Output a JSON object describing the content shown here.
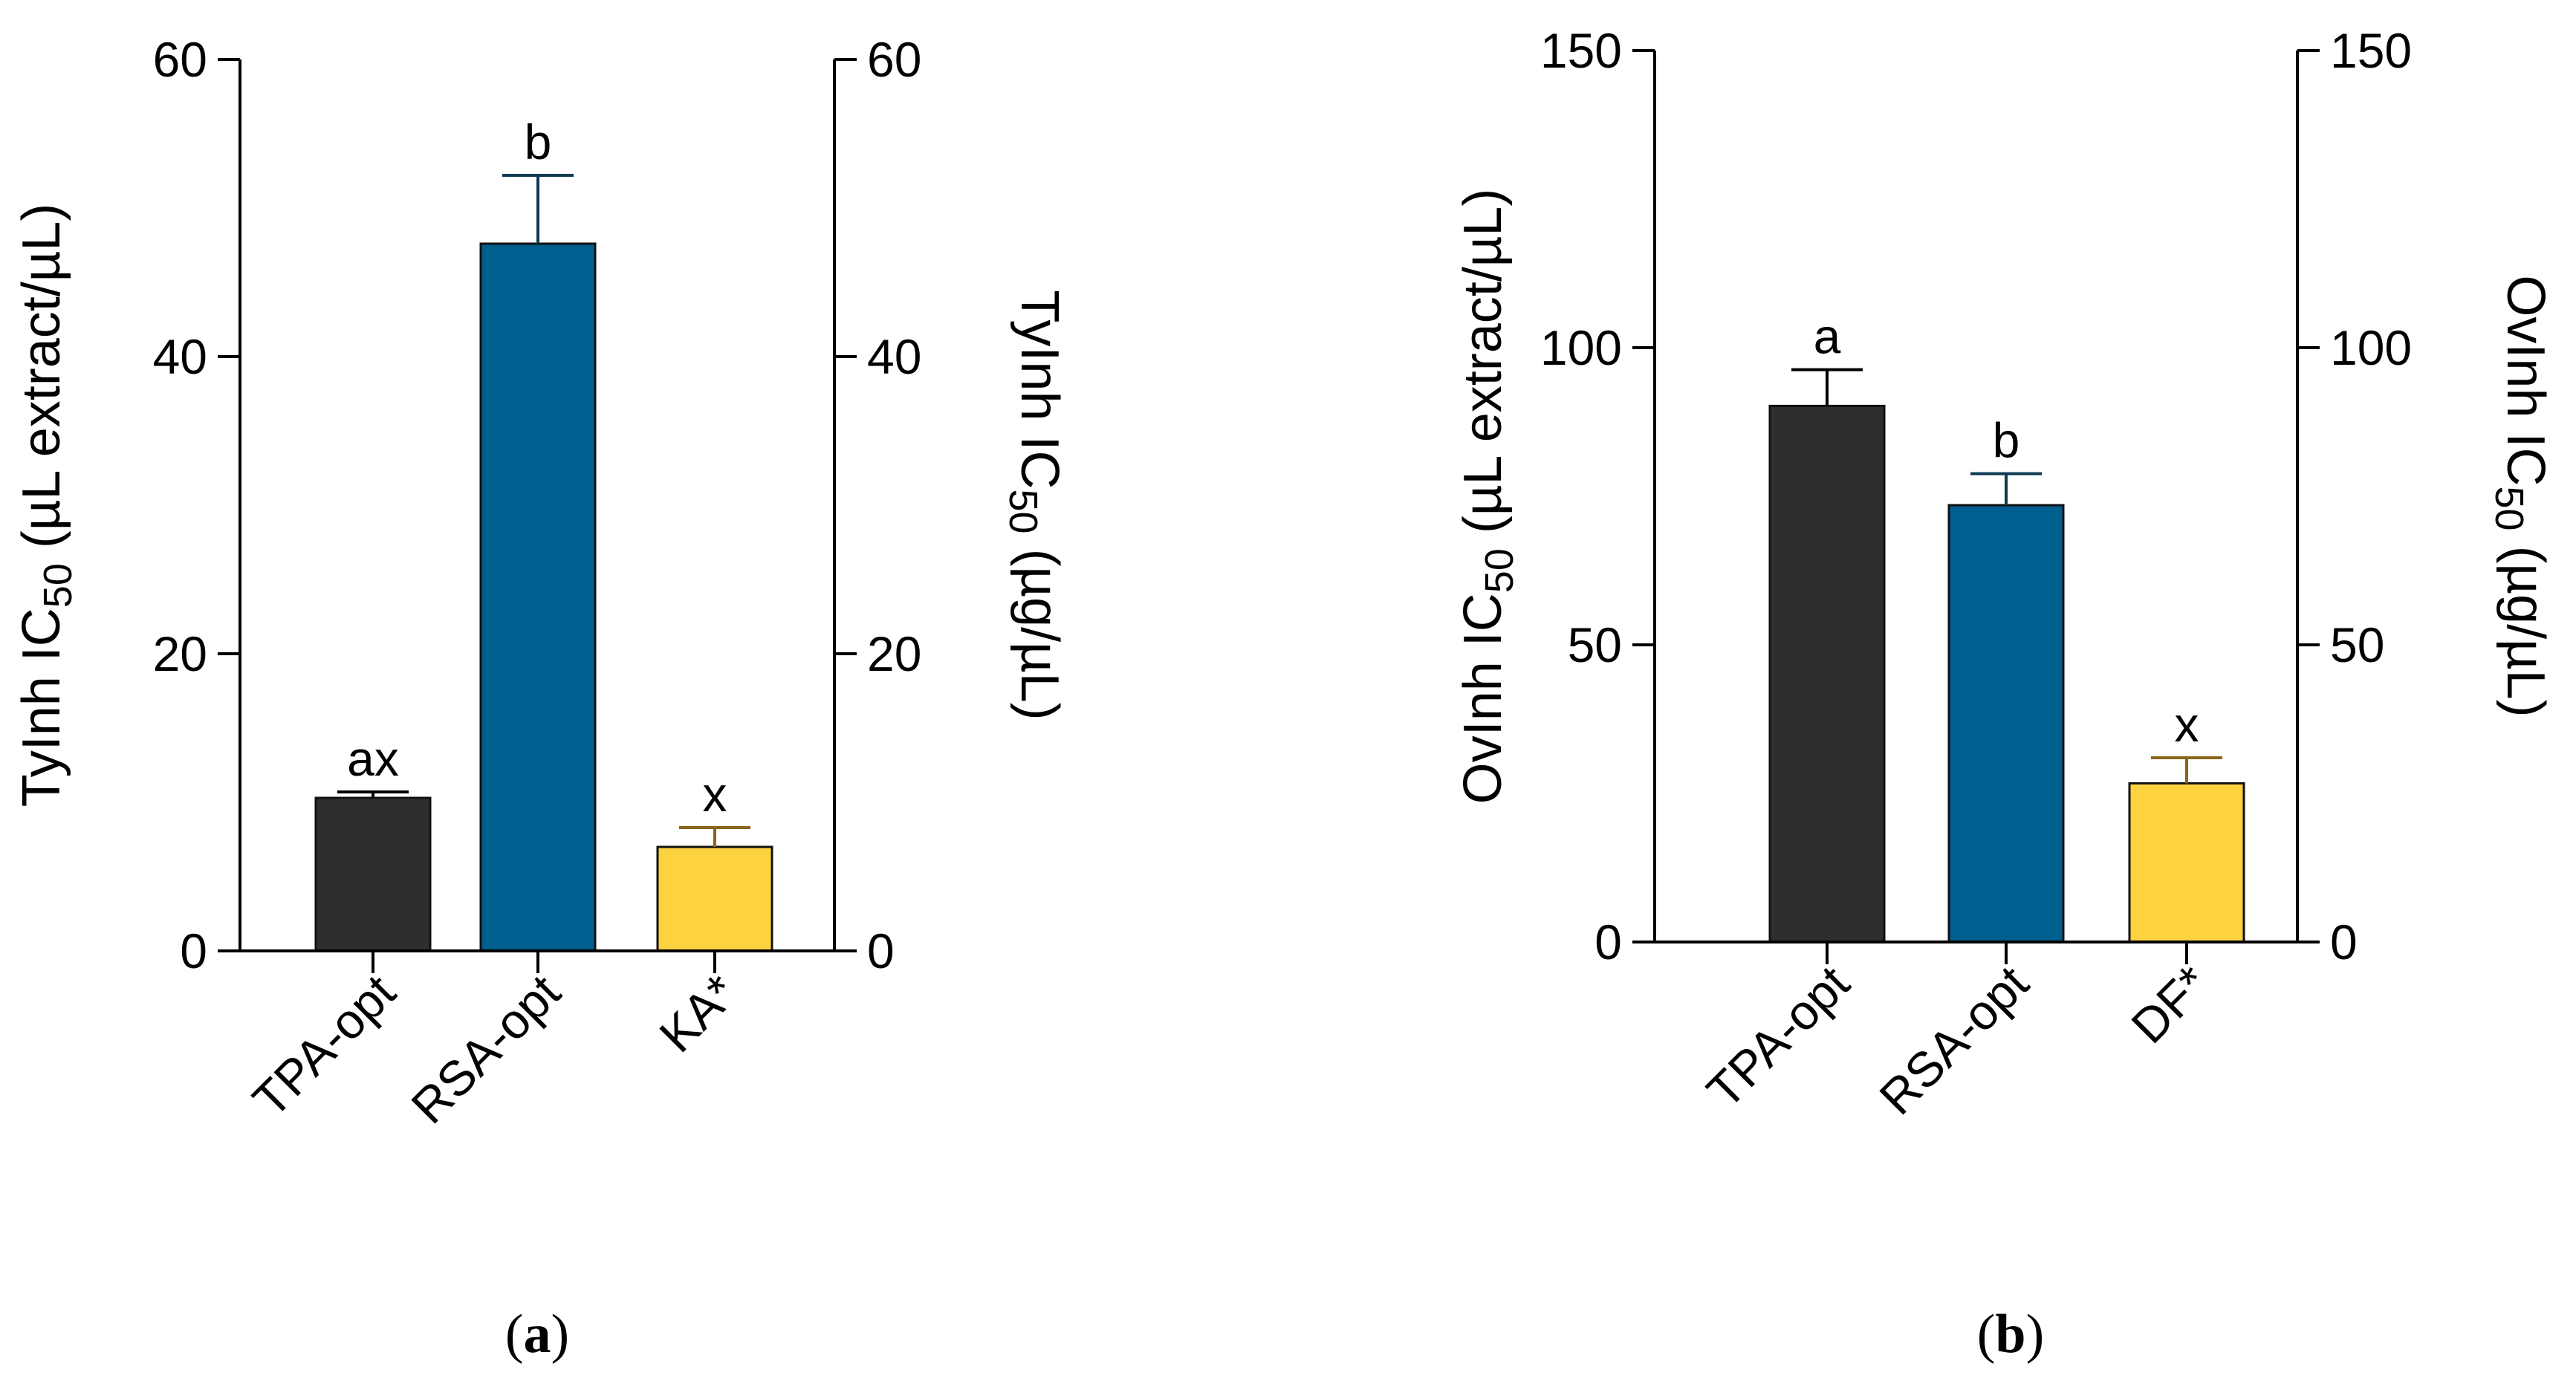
{
  "chart_data": [
    {
      "type": "bar",
      "panel_label": "a",
      "categories": [
        "TPA-opt",
        "RSA-opt",
        "KA*"
      ],
      "values": [
        10.3,
        47.6,
        7.0
      ],
      "errors": [
        0.4,
        4.6,
        1.3
      ],
      "letters": [
        "ax",
        "b",
        "x"
      ],
      "colors": [
        "#2e2e2e",
        "#005f8f",
        "#fdd23f"
      ],
      "error_colors": [
        "#000000",
        "#0b3a52",
        "#8a6418"
      ],
      "ylabel": {
        "pre": "TyInh IC",
        "sub": "50",
        "post": " (µL extract/µL)"
      },
      "y2label": {
        "pre": "TyInh IC",
        "sub": "50",
        "post": " (µg/µL)"
      },
      "ylim": [
        0,
        60
      ],
      "yticks": [
        0,
        20,
        40,
        60
      ],
      "y2ticks": [
        0,
        20,
        40,
        60
      ],
      "grid": false
    },
    {
      "type": "bar",
      "panel_label": "b",
      "categories": [
        "TPA-opt",
        "RSA-opt",
        "DF*"
      ],
      "values": [
        90.2,
        73.5,
        26.7
      ],
      "errors": [
        6.1,
        5.3,
        4.3
      ],
      "letters": [
        "a",
        "b",
        "x"
      ],
      "colors": [
        "#2e2e2e",
        "#005f8f",
        "#fdd23f"
      ],
      "error_colors": [
        "#000000",
        "#0b3a52",
        "#8a6418"
      ],
      "ylabel": {
        "pre": "OvInh IC",
        "sub": "50",
        "post": " (µL extract/µL)"
      },
      "y2label": {
        "pre": "OvInh IC",
        "sub": "50",
        "post": " (µg/µL)"
      },
      "ylim": [
        0,
        150
      ],
      "yticks": [
        0,
        50,
        100,
        150
      ],
      "y2ticks": [
        0,
        50,
        100,
        150
      ],
      "grid": false
    }
  ]
}
